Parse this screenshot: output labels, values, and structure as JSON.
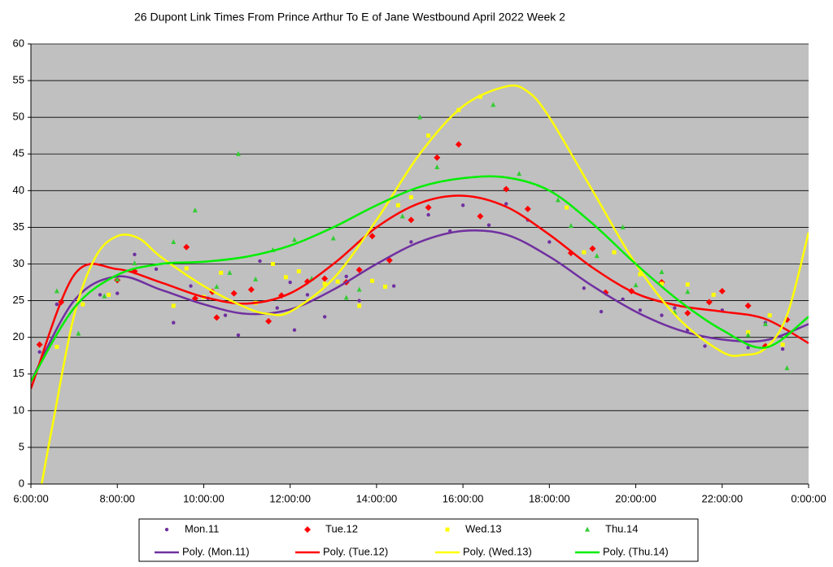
{
  "chart_data": {
    "type": "scatter",
    "title": "26 Dupont Link Times From Prince Arthur To E of Jane Westbound April 2022  Week 2",
    "xlim": [
      6,
      24
    ],
    "ylim": [
      0,
      60
    ],
    "grid": true,
    "xticks": [
      {
        "value": 6,
        "label": "6:00:00"
      },
      {
        "value": 8,
        "label": "8:00:00"
      },
      {
        "value": 10,
        "label": "10:00:00"
      },
      {
        "value": 12,
        "label": "12:00:00"
      },
      {
        "value": 14,
        "label": "14:00:00"
      },
      {
        "value": 16,
        "label": "16:00:00"
      },
      {
        "value": 18,
        "label": "18:00:00"
      },
      {
        "value": 20,
        "label": "20:00:00"
      },
      {
        "value": 22,
        "label": "22:00:00"
      },
      {
        "value": 24,
        "label": "0:00:00"
      }
    ],
    "yticks": [
      0,
      5,
      10,
      15,
      20,
      25,
      30,
      35,
      40,
      45,
      50,
      55,
      60
    ],
    "series": [
      {
        "name": "Mon.11",
        "color": "#7030a0",
        "marker": "circle",
        "x": [
          6.2,
          6.6,
          7.6,
          8.0,
          8.4,
          8.9,
          9.3,
          9.7,
          10.1,
          10.5,
          10.8,
          11.3,
          11.7,
          12.0,
          12.1,
          12.4,
          12.8,
          13.3,
          13.6,
          14.4,
          14.8,
          15.2,
          15.7,
          16.0,
          16.6,
          17.0,
          17.5,
          18.0,
          18.8,
          19.2,
          19.7,
          20.1,
          20.6,
          20.9,
          21.2,
          21.6,
          22.0,
          22.6,
          23.0,
          23.4
        ],
        "values": [
          18,
          24.5,
          25.8,
          26,
          31.3,
          29.3,
          22,
          27,
          25.3,
          23,
          20.3,
          30.4,
          24,
          27.5,
          21,
          25.8,
          22.8,
          28.3,
          25,
          27,
          33,
          36.7,
          34.5,
          38,
          35.3,
          38.2,
          36,
          33,
          26.7,
          23.5,
          25.2,
          23.7,
          23,
          24,
          21,
          18.8,
          23.7,
          18.6,
          22,
          18.4
        ]
      },
      {
        "name": "Tue.12",
        "color": "#ff0000",
        "marker": "diamond",
        "x": [
          6.2,
          6.7,
          8.0,
          8.4,
          9.6,
          9.8,
          10.2,
          10.3,
          10.7,
          11.1,
          11.5,
          11.8,
          12.4,
          12.8,
          13.3,
          13.6,
          13.9,
          14.3,
          14.8,
          15.2,
          15.4,
          15.9,
          16.4,
          17.0,
          17.5,
          18.5,
          19.0,
          19.3,
          19.9,
          20.6,
          21.2,
          21.7,
          22.0,
          22.6,
          23.0,
          23.5
        ],
        "values": [
          19,
          24.8,
          27.8,
          29,
          32.3,
          25.3,
          26.2,
          22.7,
          26,
          26.5,
          22.2,
          25.7,
          27.6,
          28,
          27.5,
          29.2,
          33.8,
          30.5,
          36,
          37.7,
          44.5,
          46.3,
          36.5,
          40.2,
          37.5,
          31.5,
          32.1,
          26.1,
          26.3,
          27.5,
          23.3,
          24.8,
          26.3,
          24.3,
          18.8,
          22.4
        ]
      },
      {
        "name": "Wed.13",
        "color": "#ffff00",
        "marker": "square",
        "x": [
          6.6,
          7.2,
          7.8,
          9.3,
          9.6,
          10.0,
          10.4,
          11.2,
          11.6,
          11.9,
          12.2,
          12.8,
          13.1,
          13.6,
          13.9,
          14.2,
          14.5,
          14.8,
          15.2,
          15.9,
          16.4,
          18.4,
          18.8,
          19.5,
          20.1,
          20.6,
          21.2,
          21.8,
          22.6,
          23.1,
          23.4
        ],
        "values": [
          18.7,
          24.5,
          25.8,
          24.3,
          29.4,
          25.5,
          28.8,
          24.7,
          30,
          28.2,
          29,
          27.3,
          27.6,
          24.3,
          27.7,
          26.9,
          38,
          39.1,
          47.5,
          51,
          52.8,
          37.7,
          31.6,
          31.6,
          28.6,
          27.3,
          27.2,
          25.8,
          20.7,
          23,
          19
        ]
      },
      {
        "name": "Thu.14",
        "color": "#33cc33",
        "marker": "triangle",
        "x": [
          6.6,
          7.1,
          7.7,
          8.0,
          8.4,
          9.3,
          9.8,
          10.3,
          10.6,
          10.8,
          11.2,
          11.6,
          12.1,
          12.5,
          13.0,
          13.3,
          13.6,
          14.6,
          15.0,
          15.4,
          16.7,
          17.3,
          18.2,
          18.5,
          19.1,
          19.7,
          20.0,
          20.6,
          20.9,
          21.2,
          22.6,
          23.0,
          23.5
        ],
        "values": [
          26.3,
          20.5,
          25.6,
          27.9,
          30.1,
          33,
          37.3,
          26.9,
          28.8,
          45,
          27.9,
          31.9,
          33.3,
          28,
          33.5,
          25.4,
          26.5,
          36.5,
          50,
          43.2,
          51.7,
          42.3,
          38.7,
          35.2,
          31.1,
          35,
          27.1,
          28.9,
          23.4,
          26.2,
          20.3,
          21.8,
          15.8
        ]
      }
    ],
    "trendlines": [
      {
        "name": "Poly. (Mon.11)",
        "color": "#7030a0",
        "x": [
          6,
          7,
          8,
          9,
          10,
          11,
          12,
          13,
          14,
          15,
          16,
          17,
          18,
          19,
          20,
          21,
          22,
          23,
          24
        ],
        "values": [
          14,
          25,
          28.3,
          26.5,
          24.5,
          23.2,
          23.8,
          26.5,
          30,
          33,
          34.5,
          34,
          31,
          27,
          23.5,
          21,
          19.7,
          19.6,
          21.8
        ]
      },
      {
        "name": "Poly. (Tue.12)",
        "color": "#ff0000",
        "x": [
          6,
          7,
          8,
          9,
          10,
          11,
          12,
          13,
          14,
          15,
          16,
          17,
          18,
          19,
          20,
          21,
          22,
          23,
          24
        ],
        "values": [
          13,
          28.5,
          29.3,
          27.5,
          25.5,
          24.6,
          26,
          30,
          35,
          38.3,
          39.3,
          37.8,
          34,
          29.5,
          26,
          24.3,
          23.5,
          22.5,
          19.2
        ]
      },
      {
        "name": "Poly. (Wed.13)",
        "color": "#ffff00",
        "x": [
          6.25,
          6.5,
          7,
          7.5,
          8,
          8.5,
          9,
          10,
          11,
          11.5,
          12,
          13,
          14,
          15,
          16,
          17,
          17.5,
          18,
          19,
          20,
          21,
          22,
          22.5,
          23,
          23.5,
          24
        ],
        "values": [
          0,
          8,
          23,
          31,
          33.8,
          33.5,
          31,
          27,
          24,
          23.2,
          23.5,
          28,
          36,
          45,
          51.5,
          54.2,
          53.5,
          50,
          40,
          30,
          22.5,
          18,
          17.6,
          18.5,
          23,
          34.3
        ]
      },
      {
        "name": "Poly. (Thu.14)",
        "color": "#00ee00",
        "x": [
          6,
          7,
          8,
          9,
          10,
          11,
          12,
          13,
          14,
          15,
          16,
          17,
          18,
          19,
          20,
          21,
          22,
          23,
          24
        ],
        "values": [
          14,
          24,
          28.5,
          30,
          30.3,
          31,
          32.5,
          35,
          38,
          40.5,
          41.7,
          41.8,
          40,
          35.5,
          30,
          25,
          21,
          18.6,
          22.8
        ]
      }
    ]
  }
}
